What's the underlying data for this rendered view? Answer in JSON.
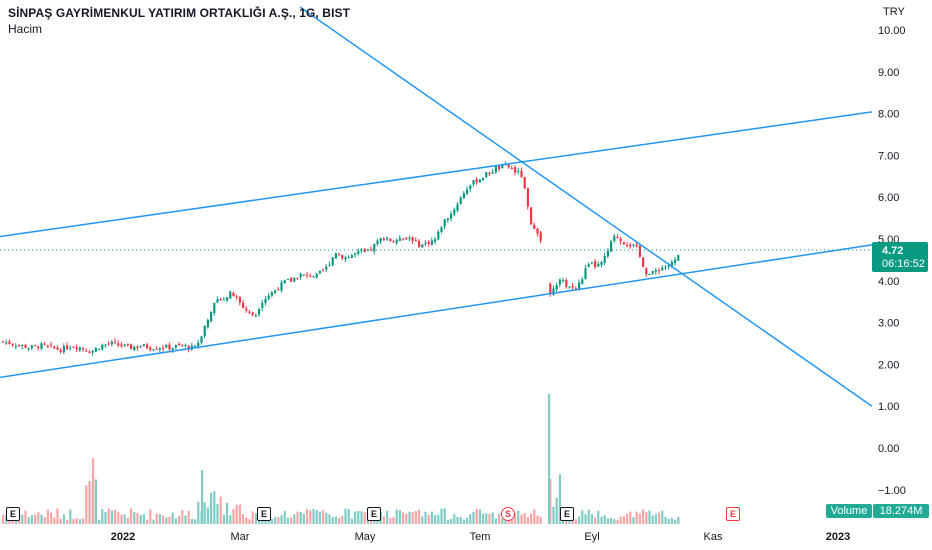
{
  "header": {
    "title": "SİNPAŞ GAYRİMENKUL YATIRIM ORTAKLIĞI A.Ş., 1G, BIST",
    "subtitle": "Hacim",
    "currency": "TRY"
  },
  "price_tag": {
    "value": "4.72",
    "countdown": "06:16:52"
  },
  "volume_badge": {
    "label": "Volume",
    "value": "18.274M"
  },
  "events": [
    "E",
    "E",
    "E",
    "S",
    "E",
    "E"
  ],
  "colors": {
    "up": "#089981",
    "down": "#f23645",
    "trendline": "#2196f3",
    "vol_up": "#80cbc4",
    "vol_down": "#f7a5a5"
  },
  "chart_data": {
    "type": "candlestick",
    "title": "SİNPAŞ GAYRİMENKUL YATIRIM ORTAKLIĞI A.Ş., 1G, BIST",
    "y_ticks": [
      "10.00",
      "9.00",
      "8.00",
      "7.00",
      "6.00",
      "5.00",
      "4.00",
      "3.00",
      "2.00",
      "1.00",
      "0.00",
      "−1.00"
    ],
    "ylim": [
      -1.0,
      10.0
    ],
    "x_ticks": [
      "2022",
      "Mar",
      "May",
      "Tem",
      "Eyl",
      "Kas",
      "2023"
    ],
    "last_price": 4.72,
    "price_path": [
      [
        0,
        2.55
      ],
      [
        10,
        2.5
      ],
      [
        20,
        2.45
      ],
      [
        30,
        2.4
      ],
      [
        40,
        2.45
      ],
      [
        50,
        2.4
      ],
      [
        60,
        2.35
      ],
      [
        70,
        2.45
      ],
      [
        80,
        2.4
      ],
      [
        90,
        2.3
      ],
      [
        100,
        2.45
      ],
      [
        110,
        2.5
      ],
      [
        120,
        2.45
      ],
      [
        130,
        2.4
      ],
      [
        140,
        2.45
      ],
      [
        150,
        2.4
      ],
      [
        160,
        2.42
      ],
      [
        170,
        2.4
      ],
      [
        180,
        2.45
      ],
      [
        190,
        2.4
      ],
      [
        195,
        2.4
      ],
      [
        200,
        2.7
      ],
      [
        205,
        3.0
      ],
      [
        210,
        3.3
      ],
      [
        215,
        3.5
      ],
      [
        220,
        3.6
      ],
      [
        225,
        3.6
      ],
      [
        230,
        3.7
      ],
      [
        235,
        3.6
      ],
      [
        240,
        3.4
      ],
      [
        245,
        3.3
      ],
      [
        250,
        3.2
      ],
      [
        255,
        3.2
      ],
      [
        260,
        3.5
      ],
      [
        265,
        3.6
      ],
      [
        270,
        3.7
      ],
      [
        275,
        3.8
      ],
      [
        280,
        3.9
      ],
      [
        285,
        4.0
      ],
      [
        290,
        4.0
      ],
      [
        295,
        4.1
      ],
      [
        300,
        4.15
      ],
      [
        305,
        4.1
      ],
      [
        310,
        4.15
      ],
      [
        315,
        4.1
      ],
      [
        320,
        4.2
      ],
      [
        325,
        4.3
      ],
      [
        330,
        4.5
      ],
      [
        335,
        4.7
      ],
      [
        340,
        4.6
      ],
      [
        345,
        4.55
      ],
      [
        350,
        4.6
      ],
      [
        355,
        4.65
      ],
      [
        360,
        4.7
      ],
      [
        365,
        4.65
      ],
      [
        370,
        4.75
      ],
      [
        375,
        4.9
      ],
      [
        380,
        5.0
      ],
      [
        385,
        5.05
      ],
      [
        390,
        4.95
      ],
      [
        395,
        4.9
      ],
      [
        400,
        5.1
      ],
      [
        405,
        5.0
      ],
      [
        410,
        5.05
      ],
      [
        415,
        4.9
      ],
      [
        420,
        4.85
      ],
      [
        425,
        4.9
      ],
      [
        430,
        4.95
      ],
      [
        435,
        5.0
      ],
      [
        440,
        5.3
      ],
      [
        445,
        5.5
      ],
      [
        450,
        5.6
      ],
      [
        455,
        5.8
      ],
      [
        460,
        6.0
      ],
      [
        465,
        6.2
      ],
      [
        470,
        6.3
      ],
      [
        475,
        6.4
      ],
      [
        480,
        6.45
      ],
      [
        485,
        6.55
      ],
      [
        490,
        6.6
      ],
      [
        495,
        6.7
      ],
      [
        500,
        6.7
      ],
      [
        505,
        6.75
      ],
      [
        510,
        6.7
      ],
      [
        515,
        6.6
      ],
      [
        520,
        6.55
      ],
      [
        525,
        6.0
      ],
      [
        530,
        5.3
      ],
      [
        535,
        5.3
      ],
      [
        540,
        4.9
      ],
      [
        545,
        4.1
      ],
      [
        548,
        3.5
      ],
      [
        550,
        3.8
      ],
      [
        555,
        3.95
      ],
      [
        560,
        4.0
      ],
      [
        565,
        3.9
      ],
      [
        570,
        3.85
      ],
      [
        575,
        3.8
      ],
      [
        580,
        4.0
      ],
      [
        585,
        4.3
      ],
      [
        590,
        4.4
      ],
      [
        595,
        4.35
      ],
      [
        600,
        4.4
      ],
      [
        605,
        4.6
      ],
      [
        610,
        4.9
      ],
      [
        615,
        5.1
      ],
      [
        620,
        4.95
      ],
      [
        625,
        4.9
      ],
      [
        630,
        4.85
      ],
      [
        635,
        4.8
      ],
      [
        640,
        4.5
      ],
      [
        645,
        4.2
      ],
      [
        650,
        4.15
      ],
      [
        655,
        4.25
      ],
      [
        660,
        4.3
      ],
      [
        665,
        4.35
      ],
      [
        670,
        4.4
      ],
      [
        675,
        4.5
      ],
      [
        680,
        4.72
      ]
    ],
    "trendlines": [
      {
        "from": [
          0,
          5.06
        ],
        "to": [
          872,
          8.04
        ]
      },
      {
        "from": [
          0,
          1.69
        ],
        "to": [
          872,
          4.86
        ]
      },
      {
        "from": [
          300,
          10.55
        ],
        "to": [
          872,
          1.0
        ]
      }
    ]
  }
}
